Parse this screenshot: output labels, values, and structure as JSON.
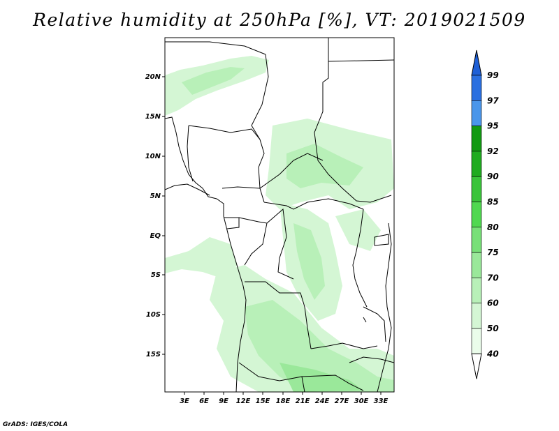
{
  "title": "Relative humidity at 250hPa [%], VT: 2019021509",
  "credit": "GrADS: IGES/COLA",
  "map": {
    "lat_labels": [
      "20N",
      "15N",
      "10N",
      "5N",
      "EQ",
      "5S",
      "10S",
      "15S"
    ],
    "lon_labels": [
      "3E",
      "6E",
      "9E",
      "12E",
      "15E",
      "18E",
      "21E",
      "24E",
      "27E",
      "30E",
      "33E"
    ]
  },
  "colorbar": {
    "levels": [
      "99",
      "97",
      "95",
      "92",
      "90",
      "85",
      "80",
      "75",
      "70",
      "60",
      "50",
      "40"
    ],
    "colors": [
      "#1e5fd6",
      "#2a6fe0",
      "#4a96ea",
      "#129a12",
      "#20ab20",
      "#3ac43a",
      "#50d850",
      "#78e078",
      "#9ae89a",
      "#b8f0b8",
      "#d4f6d4",
      "#eafcea"
    ]
  }
}
